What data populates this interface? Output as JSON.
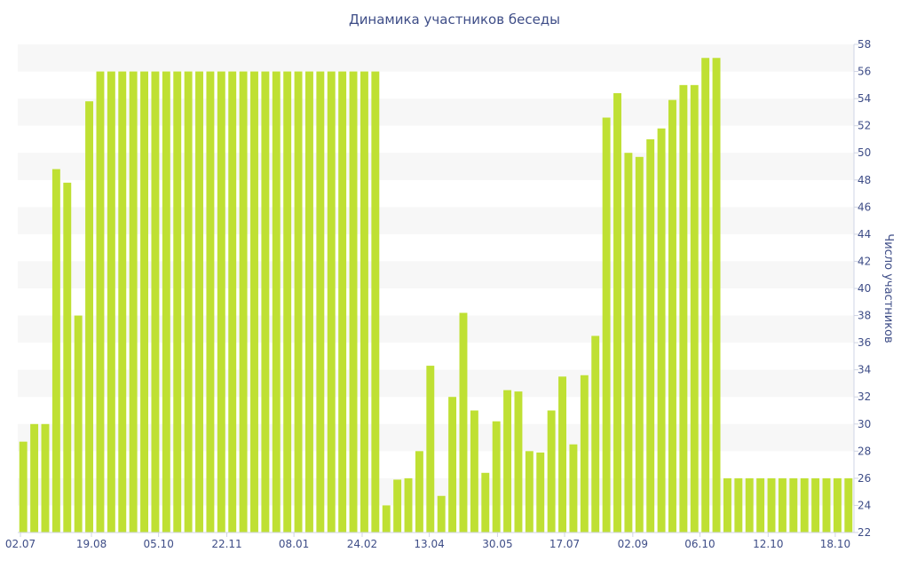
{
  "chart_data": {
    "type": "bar",
    "title": "Динамика участников беседы",
    "ylabel": "Число участников",
    "xlabel": "",
    "ylim": [
      22,
      58
    ],
    "y_ticks": [
      22,
      24,
      26,
      28,
      30,
      32,
      34,
      36,
      38,
      40,
      42,
      44,
      46,
      48,
      50,
      52,
      54,
      56,
      58
    ],
    "x_tick_labels": [
      {
        "label": "02.07",
        "index": 0
      },
      {
        "label": "19.08",
        "index": 6.2
      },
      {
        "label": "05.10",
        "index": 12.3
      },
      {
        "label": "22.11",
        "index": 18.5
      },
      {
        "label": "08.01",
        "index": 24.6
      },
      {
        "label": "24.02",
        "index": 30.8
      },
      {
        "label": "13.04",
        "index": 36.9
      },
      {
        "label": "30.05",
        "index": 43.1
      },
      {
        "label": "17.07",
        "index": 49.2
      },
      {
        "label": "02.09",
        "index": 55.4
      },
      {
        "label": "06.10",
        "index": 61.5
      },
      {
        "label": "12.10",
        "index": 67.7
      },
      {
        "label": "18.10",
        "index": 73.8
      }
    ],
    "values": [
      28.7,
      30,
      30,
      48.8,
      47.8,
      38,
      53.8,
      56,
      56,
      56,
      56,
      56,
      56,
      56,
      56,
      56,
      56,
      56,
      56,
      56,
      56,
      56,
      56,
      56,
      56,
      56,
      56,
      56,
      56,
      56,
      56,
      56,
      56,
      24,
      25.9,
      26,
      28,
      34.3,
      24.7,
      32,
      38.2,
      31,
      26.4,
      30.2,
      32.5,
      32.4,
      28,
      27.9,
      31,
      33.5,
      28.5,
      33.6,
      36.5,
      52.6,
      54.4,
      50,
      49.7,
      51,
      51.8,
      53.9,
      55,
      55,
      57,
      57,
      26,
      26,
      26,
      26,
      26,
      26,
      26,
      26,
      26,
      26,
      26,
      26
    ],
    "grid": true,
    "y_axis_side": "right",
    "colors": {
      "bar": "#bfe033",
      "band": "#f7f7f7",
      "text": "#3e4d87",
      "axis": "#cfd4e4"
    }
  }
}
